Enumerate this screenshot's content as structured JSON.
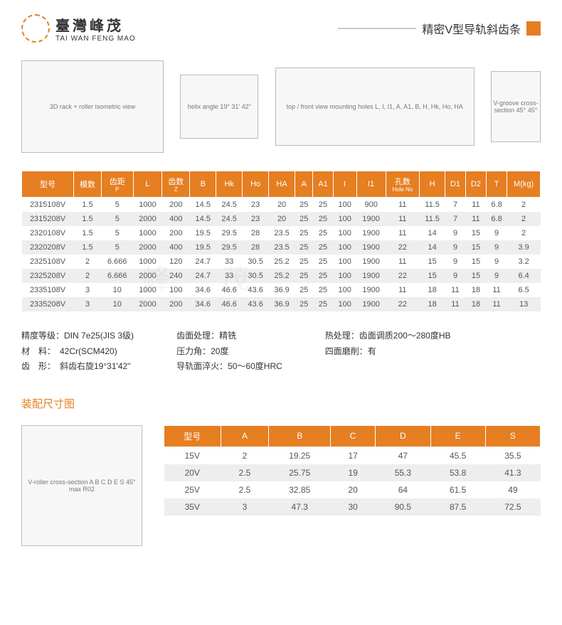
{
  "header": {
    "company_cn": "臺灣峰茂",
    "company_en": "TAI WAN FENG MAO",
    "product_title": "精密V型导轨斜齿条"
  },
  "diagrams": {
    "d1": "3D rack + roller\nisometric view",
    "d2": "helix angle\n19° 31' 42\"",
    "d3": "top / front view\nmounting holes L, I, I1, A, A1, B, H, Hk, Ho, HA",
    "d4": "V-groove\ncross-section\n45° 45°"
  },
  "spec_table": {
    "columns": [
      "型号",
      "模数",
      "齿距 P",
      "L",
      "齿数 Z",
      "B",
      "Hk",
      "Ho",
      "HA",
      "A",
      "A1",
      "I",
      "I1",
      "孔数 Hole No",
      "H",
      "D1",
      "D2",
      "T",
      "M(kg)"
    ],
    "column_colors": "#e67e22",
    "rows": [
      [
        "2315108V",
        "1.5",
        "5",
        "1000",
        "200",
        "14.5",
        "24.5",
        "23",
        "20",
        "25",
        "25",
        "100",
        "900",
        "11",
        "11.5",
        "7",
        "11",
        "6.8",
        "2"
      ],
      [
        "2315208V",
        "1.5",
        "5",
        "2000",
        "400",
        "14.5",
        "24.5",
        "23",
        "20",
        "25",
        "25",
        "100",
        "1900",
        "11",
        "11.5",
        "7",
        "11",
        "6.8",
        "2"
      ],
      [
        "2320108V",
        "1.5",
        "5",
        "1000",
        "200",
        "19.5",
        "29.5",
        "28",
        "23.5",
        "25",
        "25",
        "100",
        "1900",
        "11",
        "14",
        "9",
        "15",
        "9",
        "2"
      ],
      [
        "2320208V",
        "1.5",
        "5",
        "2000",
        "400",
        "19.5",
        "29.5",
        "28",
        "23.5",
        "25",
        "25",
        "100",
        "1900",
        "22",
        "14",
        "9",
        "15",
        "9",
        "3.9"
      ],
      [
        "2325108V",
        "2",
        "6.666",
        "1000",
        "120",
        "24.7",
        "33",
        "30.5",
        "25.2",
        "25",
        "25",
        "100",
        "1900",
        "11",
        "15",
        "9",
        "15",
        "9",
        "3.2"
      ],
      [
        "2325208V",
        "2",
        "6.666",
        "2000",
        "240",
        "24.7",
        "33",
        "30.5",
        "25.2",
        "25",
        "25",
        "100",
        "1900",
        "22",
        "15",
        "9",
        "15",
        "9",
        "6.4"
      ],
      [
        "2335108V",
        "3",
        "10",
        "1000",
        "100",
        "34.6",
        "46.6",
        "43.6",
        "36.9",
        "25",
        "25",
        "100",
        "1900",
        "11",
        "18",
        "11",
        "18",
        "11",
        "6.5"
      ],
      [
        "2335208V",
        "3",
        "10",
        "2000",
        "200",
        "34.6",
        "46.6",
        "43.6",
        "36.9",
        "25",
        "25",
        "100",
        "1900",
        "22",
        "18",
        "11",
        "18",
        "11",
        "13"
      ]
    ]
  },
  "notes": {
    "col1": {
      "precision_label": "精度等级：",
      "precision_value": "DIN 7e25(JIS 3级)",
      "material_label": "材　料：",
      "material_value": "42Cr(SCM420)",
      "tooth_label": "齿　形：",
      "tooth_value": "斜齿右旋19°31'42\""
    },
    "col2": {
      "surface_label": "齿面处理：",
      "surface_value": "精铣",
      "pressure_label": "压力角：",
      "pressure_value": "20度",
      "hardening_label": "导轨面淬火：",
      "hardening_value": "50～60度HRC"
    },
    "col3": {
      "heat_label": "热处理：",
      "heat_value": "齿面调质200～280度HB",
      "grind_label": "四面磨削：",
      "grind_value": "有"
    }
  },
  "assembly": {
    "section_title": "装配尺寸图",
    "diag_text": "V-roller cross-section\nA B C D E S\n45° max R02",
    "columns": [
      "型号",
      "A",
      "B",
      "C",
      "D",
      "E",
      "S"
    ],
    "rows": [
      [
        "15V",
        "2",
        "19.25",
        "17",
        "47",
        "45.5",
        "35.5"
      ],
      [
        "20V",
        "2.5",
        "25.75",
        "19",
        "55.3",
        "53.8",
        "41.3"
      ],
      [
        "25V",
        "2.5",
        "32.85",
        "20",
        "64",
        "61.5",
        "49"
      ],
      [
        "35V",
        "3",
        "47.3",
        "30",
        "90.5",
        "87.5",
        "72.5"
      ]
    ]
  },
  "watermark": "峰 茂",
  "colors": {
    "accent": "#e67e22",
    "row_alt": "#eeeeee",
    "text": "#333333"
  }
}
